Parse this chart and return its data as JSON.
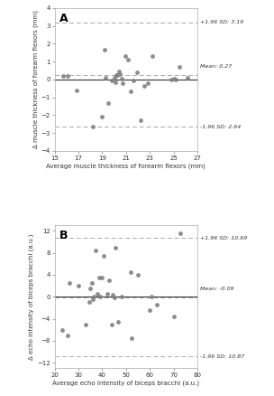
{
  "panel_A": {
    "title": "A",
    "xlabel": "Average muscle thickness of forearm flexors (mm)",
    "ylabel": "Δ muscle thickness of forearm flexors (mm)",
    "mean": 0.27,
    "upper_loa": 3.19,
    "lower_loa": -2.64,
    "xlim": [
      15,
      27
    ],
    "ylim": [
      -4,
      4
    ],
    "xticks": [
      15,
      17,
      19,
      21,
      23,
      25,
      27
    ],
    "yticks": [
      -4,
      -3,
      -2,
      -1,
      0,
      1,
      2,
      3,
      4
    ],
    "upper_label": "+1.96 SD: 3.19",
    "lower_label": "-1.96 SD: 2.64",
    "mean_label": "Mean: 0.27",
    "x_data": [
      15.7,
      16.1,
      16.8,
      18.2,
      19.0,
      19.2,
      19.3,
      19.5,
      19.8,
      20.0,
      20.1,
      20.2,
      20.25,
      20.4,
      20.5,
      20.6,
      20.7,
      20.9,
      21.2,
      21.4,
      21.6,
      21.9,
      22.2,
      22.5,
      22.8,
      23.2,
      24.8,
      25.0,
      25.2,
      25.5,
      26.2
    ],
    "y_data": [
      0.2,
      0.2,
      -0.6,
      -2.65,
      -2.1,
      1.65,
      0.1,
      -1.3,
      -0.05,
      0.1,
      -0.15,
      0.25,
      0.25,
      0.45,
      0.3,
      0.05,
      -0.2,
      1.3,
      1.1,
      -0.65,
      -0.05,
      0.4,
      -2.3,
      -0.35,
      -0.2,
      1.3,
      0.0,
      0.05,
      0.0,
      0.7,
      0.1
    ]
  },
  "panel_B": {
    "title": "B",
    "xlabel": "Average echo intensity of biceps bracchi (a.u.)",
    "ylabel": "Δ echo intensity of biceps bracchi (a.u.)",
    "mean": -0.09,
    "upper_loa": 10.69,
    "lower_loa": -10.87,
    "xlim": [
      20,
      80
    ],
    "ylim": [
      -13,
      13
    ],
    "xticks": [
      20,
      30,
      40,
      50,
      60,
      70,
      80
    ],
    "yticks": [
      -12,
      -8,
      -4,
      0,
      4,
      8,
      12
    ],
    "upper_label": "+1.96 SD: 10.69",
    "lower_label": "-1.96 SD: 10.87",
    "mean_label": "Mean: -0.09",
    "x_data": [
      23.0,
      25.5,
      26.0,
      30.0,
      33.0,
      34.5,
      35.0,
      35.5,
      36.0,
      36.5,
      37.0,
      38.0,
      38.5,
      39.0,
      40.0,
      40.5,
      42.0,
      43.0,
      44.0,
      44.5,
      45.0,
      45.5,
      46.5,
      48.0,
      52.0,
      52.5,
      55.0,
      60.0,
      60.5,
      63.0,
      70.0,
      73.0
    ],
    "y_data": [
      -6.0,
      -7.0,
      2.5,
      2.0,
      -5.0,
      -1.0,
      1.5,
      2.5,
      -0.5,
      0.0,
      8.5,
      0.5,
      3.5,
      0.0,
      3.5,
      7.5,
      0.5,
      3.0,
      -5.0,
      0.3,
      -0.1,
      9.0,
      -4.5,
      0.0,
      4.5,
      -7.5,
      4.0,
      -2.5,
      0.0,
      -1.5,
      -3.5,
      11.5
    ]
  },
  "dot_color": "#808080",
  "dot_size": 12,
  "zero_line_color": "#333333",
  "dashed_color": "#aaaaaa",
  "bg_color": "#ffffff",
  "spine_color": "#aaaaaa",
  "tick_label_color": "#333333",
  "annotation_color": "#333333"
}
